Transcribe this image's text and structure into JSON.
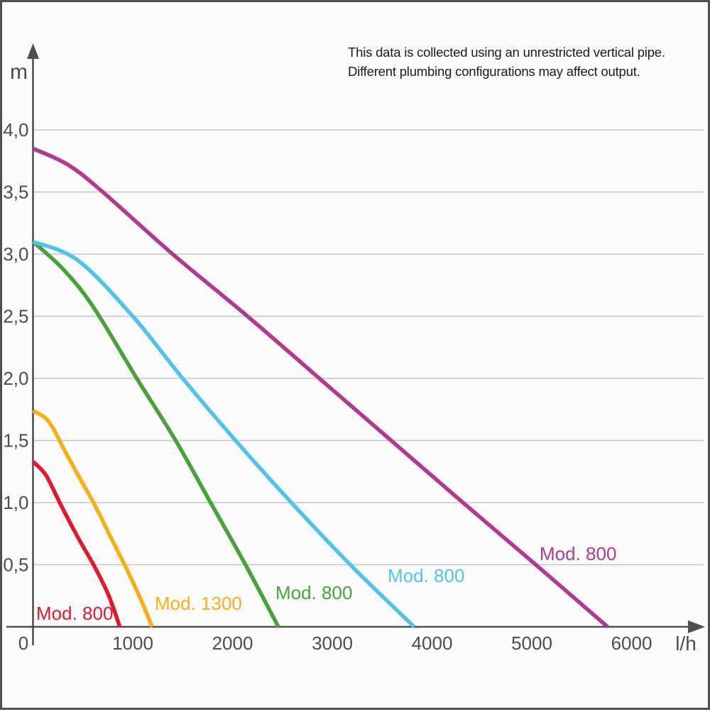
{
  "annotation": {
    "line1": "This data is collected using an unrestricted vertical pipe.",
    "line2": "Different plumbing configurations may affect output."
  },
  "chart_data": {
    "type": "line",
    "title": "",
    "xlabel": "l/h",
    "ylabel": "m",
    "xlim": [
      0,
      6700
    ],
    "ylim": [
      0,
      4.35
    ],
    "grid": "horizontal-only",
    "legend": "inline-curve-labels",
    "x_ticks": [
      0,
      1000,
      2000,
      3000,
      4000,
      5000,
      6000
    ],
    "x_tick_labels": [
      "0",
      "1000",
      "2000",
      "3000",
      "4000",
      "5000",
      "6000"
    ],
    "y_ticks": [
      0.5,
      1.0,
      1.5,
      2.0,
      2.5,
      3.0,
      3.5,
      4.0
    ],
    "y_tick_labels": [
      "0,5",
      "1,0",
      "1,5",
      "2,0",
      "2,5",
      "3,0",
      "3,5",
      "4,0"
    ],
    "series": [
      {
        "name": "Mod. 800",
        "color": "#e2182c",
        "max_head_m": 1.33,
        "max_flow_lh": 870,
        "points": [
          [
            0,
            1.33
          ],
          [
            130,
            1.22
          ],
          [
            280,
            0.98
          ],
          [
            450,
            0.72
          ],
          [
            620,
            0.48
          ],
          [
            760,
            0.25
          ],
          [
            870,
            0
          ]
        ]
      },
      {
        "name": "Mod. 1300",
        "color": "#f9ae17",
        "max_head_m": 1.74,
        "max_flow_lh": 1195,
        "points": [
          [
            0,
            1.74
          ],
          [
            160,
            1.65
          ],
          [
            330,
            1.4
          ],
          [
            480,
            1.18
          ],
          [
            620,
            0.98
          ],
          [
            780,
            0.72
          ],
          [
            930,
            0.48
          ],
          [
            1070,
            0.24
          ],
          [
            1195,
            0
          ]
        ]
      },
      {
        "name": "Mod. 800",
        "color": "#44a438",
        "max_head_m": 3.1,
        "max_flow_lh": 2460,
        "points": [
          [
            0,
            3.1
          ],
          [
            300,
            2.88
          ],
          [
            600,
            2.58
          ],
          [
            1040,
            2.0
          ],
          [
            1430,
            1.5
          ],
          [
            1780,
            1.0
          ],
          [
            2130,
            0.5
          ],
          [
            2460,
            0
          ]
        ]
      },
      {
        "name": "Mod. 800",
        "color": "#4ec3ed",
        "max_head_m": 3.1,
        "max_flow_lh": 3820,
        "points": [
          [
            0,
            3.1
          ],
          [
            450,
            2.95
          ],
          [
            1000,
            2.5
          ],
          [
            1500,
            2.0
          ],
          [
            2030,
            1.5
          ],
          [
            2590,
            1.0
          ],
          [
            3180,
            0.5
          ],
          [
            3820,
            0
          ]
        ]
      },
      {
        "name": "Mod. 800",
        "color": "#b43892",
        "max_head_m": 3.85,
        "max_flow_lh": 5760,
        "points": [
          [
            0,
            3.85
          ],
          [
            350,
            3.72
          ],
          [
            700,
            3.5
          ],
          [
            1400,
            3.0
          ],
          [
            2150,
            2.5
          ],
          [
            2870,
            2.0
          ],
          [
            3590,
            1.5
          ],
          [
            4310,
            1.0
          ],
          [
            5040,
            0.5
          ],
          [
            5760,
            0
          ]
        ]
      }
    ],
    "colors": {
      "axis": "#4f4f4f",
      "grid": "#c6c6c6",
      "tick_text": "#4d4d4d",
      "note_text": "#1b1b1b",
      "background": "#fbfbfb"
    }
  }
}
